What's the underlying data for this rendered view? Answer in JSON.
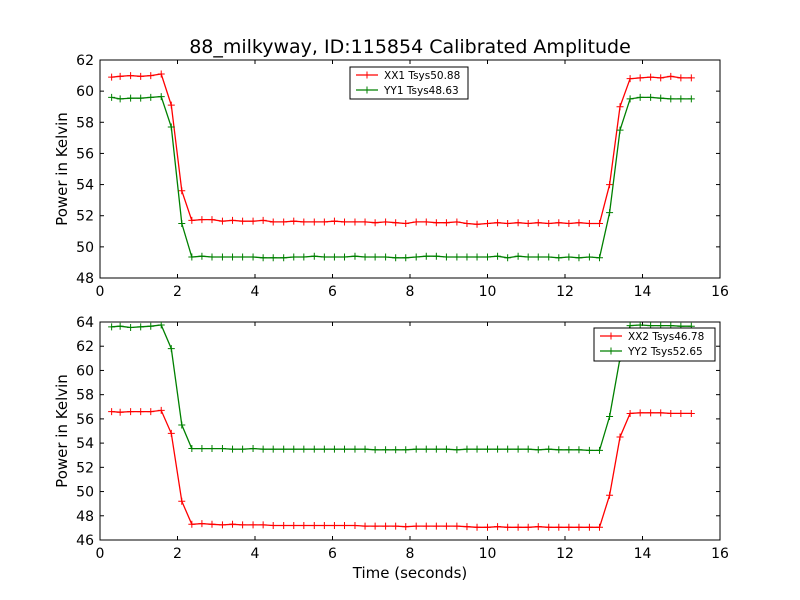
{
  "title": "88_milkyway, ID:115854 Calibrated Amplitude",
  "xlabel": "Time (seconds)",
  "chart_data": [
    {
      "type": "line",
      "title": "88_milkyway, ID:115854 Calibrated Amplitude",
      "xlabel": "",
      "ylabel": "Power in Kelvin",
      "xlim": [
        0,
        16
      ],
      "ylim": [
        48,
        62
      ],
      "xticks": [
        0,
        2,
        4,
        6,
        8,
        10,
        12,
        14,
        16
      ],
      "yticks": [
        48,
        50,
        52,
        54,
        56,
        58,
        60,
        62
      ],
      "legend": "top-center",
      "grid": false,
      "x": [
        0.3,
        0.52,
        0.79,
        1.05,
        1.31,
        1.58,
        1.84,
        2.11,
        2.37,
        2.63,
        2.89,
        3.16,
        3.42,
        3.68,
        3.95,
        4.21,
        4.47,
        4.74,
        5.0,
        5.26,
        5.53,
        5.79,
        6.05,
        6.31,
        6.58,
        6.84,
        7.1,
        7.37,
        7.63,
        7.89,
        8.16,
        8.42,
        8.68,
        8.94,
        9.21,
        9.47,
        9.73,
        10.0,
        10.26,
        10.52,
        10.79,
        11.05,
        11.31,
        11.58,
        11.84,
        12.1,
        12.36,
        12.63,
        12.89,
        13.15,
        13.42,
        13.68,
        13.94,
        14.21,
        14.47,
        14.73,
        14.99,
        15.26
      ],
      "series": [
        {
          "name": "XX1 Tsys50.88",
          "color": "#ff0000",
          "values": [
            60.9,
            60.95,
            61.0,
            60.95,
            61.0,
            61.1,
            59.1,
            53.6,
            51.7,
            51.75,
            51.75,
            51.65,
            51.7,
            51.65,
            51.65,
            51.7,
            51.6,
            51.6,
            51.65,
            51.6,
            51.6,
            51.6,
            51.65,
            51.6,
            51.6,
            51.6,
            51.55,
            51.6,
            51.55,
            51.5,
            51.6,
            51.6,
            51.55,
            51.55,
            51.6,
            51.5,
            51.45,
            51.5,
            51.55,
            51.5,
            51.55,
            51.5,
            51.55,
            51.5,
            51.55,
            51.5,
            51.55,
            51.5,
            51.5,
            54.0,
            59.0,
            60.8,
            60.85,
            60.9,
            60.85,
            60.95,
            60.85,
            60.85
          ]
        },
        {
          "name": "YY1 Tsys48.63",
          "color": "#008000",
          "values": [
            59.6,
            59.5,
            59.55,
            59.55,
            59.6,
            59.65,
            57.7,
            51.5,
            49.35,
            49.4,
            49.35,
            49.35,
            49.35,
            49.35,
            49.35,
            49.3,
            49.3,
            49.3,
            49.35,
            49.35,
            49.4,
            49.35,
            49.35,
            49.35,
            49.4,
            49.35,
            49.35,
            49.35,
            49.3,
            49.3,
            49.35,
            49.4,
            49.4,
            49.35,
            49.35,
            49.35,
            49.35,
            49.35,
            49.4,
            49.3,
            49.4,
            49.35,
            49.35,
            49.35,
            49.3,
            49.35,
            49.3,
            49.35,
            49.3,
            52.2,
            57.5,
            59.5,
            59.6,
            59.6,
            59.55,
            59.5,
            59.5,
            59.5
          ]
        }
      ]
    },
    {
      "type": "line",
      "title": "",
      "xlabel": "Time (seconds)",
      "ylabel": "Power in Kelvin",
      "xlim": [
        0,
        16
      ],
      "ylim": [
        46,
        64
      ],
      "xticks": [
        0,
        2,
        4,
        6,
        8,
        10,
        12,
        14,
        16
      ],
      "yticks": [
        46,
        48,
        50,
        52,
        54,
        56,
        58,
        60,
        62,
        64
      ],
      "legend": "top-right",
      "grid": false,
      "x": [
        0.3,
        0.52,
        0.79,
        1.05,
        1.31,
        1.58,
        1.84,
        2.11,
        2.37,
        2.63,
        2.89,
        3.16,
        3.42,
        3.68,
        3.95,
        4.21,
        4.47,
        4.74,
        5.0,
        5.26,
        5.53,
        5.79,
        6.05,
        6.31,
        6.58,
        6.84,
        7.1,
        7.37,
        7.63,
        7.89,
        8.16,
        8.42,
        8.68,
        8.94,
        9.21,
        9.47,
        9.73,
        10.0,
        10.26,
        10.52,
        10.79,
        11.05,
        11.31,
        11.58,
        11.84,
        12.1,
        12.36,
        12.63,
        12.89,
        13.15,
        13.42,
        13.68,
        13.94,
        14.21,
        14.47,
        14.73,
        14.99,
        15.26
      ],
      "series": [
        {
          "name": "XX2 Tsys46.78",
          "color": "#ff0000",
          "values": [
            56.6,
            56.55,
            56.6,
            56.6,
            56.6,
            56.7,
            54.8,
            49.2,
            47.3,
            47.35,
            47.3,
            47.25,
            47.3,
            47.25,
            47.25,
            47.25,
            47.2,
            47.2,
            47.2,
            47.2,
            47.2,
            47.2,
            47.2,
            47.2,
            47.2,
            47.15,
            47.15,
            47.15,
            47.15,
            47.1,
            47.15,
            47.15,
            47.15,
            47.15,
            47.15,
            47.1,
            47.05,
            47.05,
            47.1,
            47.05,
            47.05,
            47.05,
            47.1,
            47.05,
            47.05,
            47.05,
            47.05,
            47.05,
            47.05,
            49.7,
            54.5,
            56.45,
            56.5,
            56.5,
            56.5,
            56.45,
            56.45,
            56.45
          ]
        },
        {
          "name": "YY2 Tsys52.65",
          "color": "#008000",
          "values": [
            63.6,
            63.65,
            63.55,
            63.6,
            63.65,
            63.75,
            61.8,
            55.5,
            53.55,
            53.55,
            53.55,
            53.55,
            53.5,
            53.5,
            53.55,
            53.5,
            53.5,
            53.5,
            53.5,
            53.5,
            53.5,
            53.5,
            53.5,
            53.5,
            53.5,
            53.5,
            53.45,
            53.45,
            53.45,
            53.45,
            53.5,
            53.5,
            53.5,
            53.5,
            53.45,
            53.5,
            53.5,
            53.5,
            53.5,
            53.5,
            53.5,
            53.5,
            53.45,
            53.5,
            53.45,
            53.45,
            53.45,
            53.4,
            53.4,
            56.2,
            61.0,
            63.7,
            63.75,
            63.7,
            63.7,
            63.7,
            63.65,
            63.65
          ]
        }
      ]
    }
  ]
}
